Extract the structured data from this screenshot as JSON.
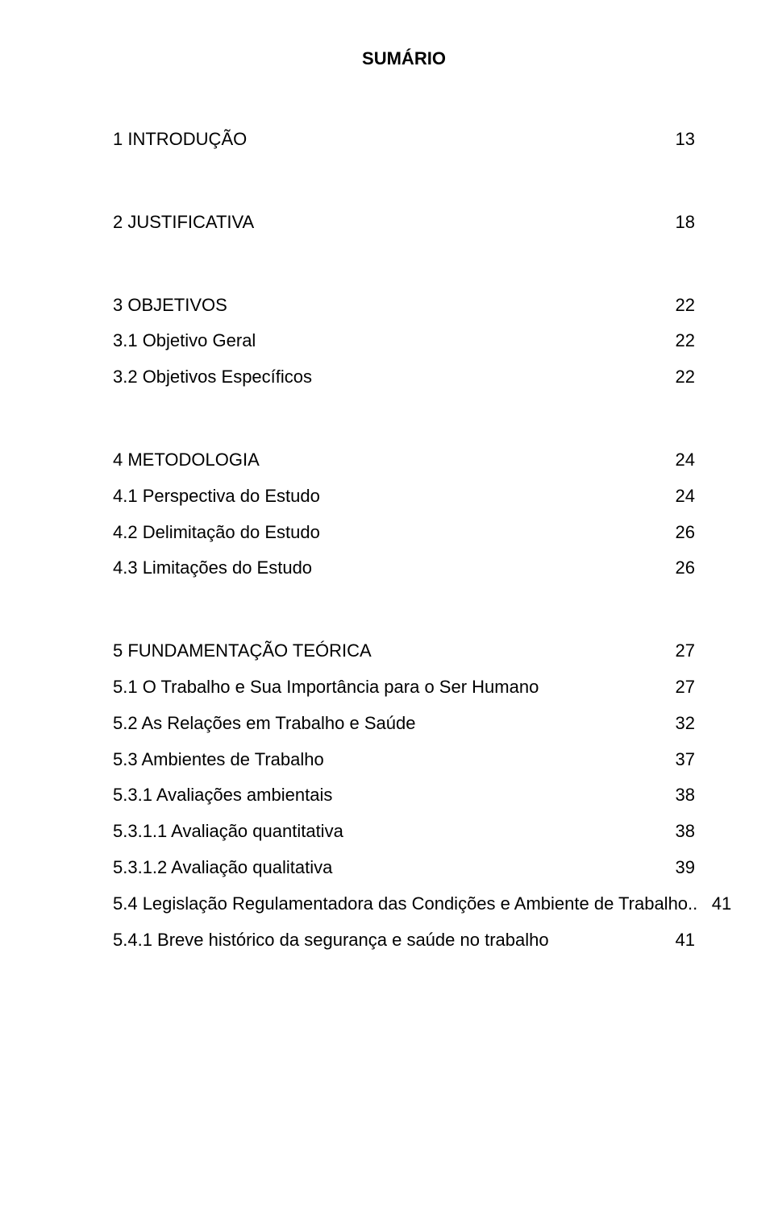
{
  "doc": {
    "title": "SUMÁRIO",
    "text_color": "#000000",
    "background_color": "#ffffff",
    "font_family": "Arial",
    "title_fontsize": 22,
    "entry_fontsize": 22
  },
  "toc": [
    {
      "label": "1 INTRODUÇÃO",
      "page": "13",
      "gap_before": "none"
    },
    {
      "label": "2   JUSTIFICATIVA",
      "page": "18",
      "gap_before": "chapter"
    },
    {
      "label": "3   OBJETIVOS",
      "page": "22",
      "gap_before": "chapter"
    },
    {
      "label": "3.1 Objetivo Geral",
      "page": "22",
      "gap_before": "line"
    },
    {
      "label": "3.2 Objetivos Específicos",
      "page": "22",
      "gap_before": "line"
    },
    {
      "label": "4   METODOLOGIA",
      "page": "24",
      "gap_before": "chapter"
    },
    {
      "label": "4.1 Perspectiva do Estudo",
      "page": "24",
      "gap_before": "line"
    },
    {
      "label": "4.2 Delimitação do Estudo",
      "page": "26",
      "gap_before": "line"
    },
    {
      "label": "4.3 Limitações do Estudo",
      "page": "26",
      "gap_before": "line"
    },
    {
      "label": "5   FUNDAMENTAÇÃO TEÓRICA",
      "page": "27",
      "gap_before": "chapter"
    },
    {
      "label": "5.1  O Trabalho e Sua Importância para o Ser Humano",
      "page": "27",
      "gap_before": "line"
    },
    {
      "label": "5.2 As Relações em Trabalho e Saúde",
      "page": "32",
      "gap_before": "line"
    },
    {
      "label": "5.3 Ambientes de Trabalho",
      "page": "37",
      "gap_before": "line"
    },
    {
      "label": "5.3.1  Avaliações ambientais",
      "page": "38",
      "gap_before": "line"
    },
    {
      "label": "5.3.1.1 Avaliação quantitativa",
      "page": "38",
      "gap_before": "line"
    },
    {
      "label": "5.3.1.2 Avaliação qualitativa",
      "page": "39",
      "gap_before": "line"
    },
    {
      "label": "5.4 Legislação Regulamentadora das Condições e Ambiente de Trabalho..",
      "page": "41",
      "gap_before": "line"
    },
    {
      "label": "5.4.1 Breve histórico da segurança e saúde no trabalho",
      "page": "41",
      "gap_before": "line"
    }
  ]
}
